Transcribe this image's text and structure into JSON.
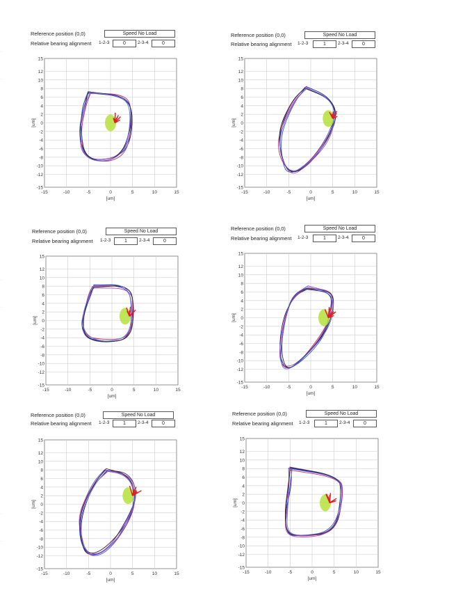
{
  "labels": {
    "reference_position": "Reference position (0,0)",
    "relative_alignment": "Relative bearing alignment",
    "pos_123": "1-2-3",
    "pos_234": "2-3-4",
    "axis_unit": "[um]"
  },
  "axis": {
    "ticks_y": [
      "15",
      "12",
      "10",
      "8",
      "6",
      "4",
      "2",
      "0",
      "-2",
      "-4",
      "-6",
      "-8",
      "-10",
      "-12",
      "-15"
    ],
    "ticks_x": [
      "-15",
      "-10",
      "-5",
      "0",
      "5",
      "10",
      "15"
    ]
  },
  "panels": [
    {
      "mode": "Speed No Load",
      "val_123": "0",
      "val_234": "0"
    },
    {
      "mode": "Speed No Load",
      "val_123": "1",
      "val_234": "0"
    },
    {
      "mode": "Speed No Load",
      "val_123": "1",
      "val_234": "0"
    },
    {
      "mode": "Speed No Load",
      "val_123": "1",
      "val_234": "0"
    },
    {
      "mode": "Speed No Load",
      "val_123": "1",
      "val_234": "0"
    },
    {
      "mode": "Speed No Load",
      "val_123": "1",
      "val_234": "0"
    }
  ]
}
